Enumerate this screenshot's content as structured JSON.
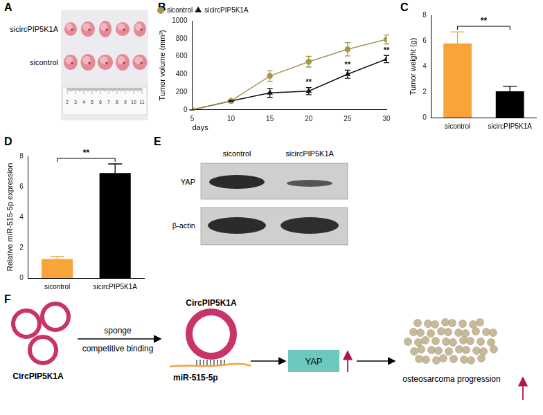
{
  "panel_labels": [
    "A",
    "B",
    "C",
    "D",
    "E",
    "F"
  ],
  "panel_a": {
    "row_labels": [
      "sicircPIP5K1A",
      "sicontrol"
    ],
    "ruler_labels": [
      2,
      3,
      4,
      5,
      6,
      7,
      8,
      9,
      10,
      11
    ]
  },
  "chart_data": [
    {
      "type": "line",
      "x_label": "days",
      "y_label": "Tumor volume (mm³)",
      "legend": "top-left",
      "grid": false,
      "x": [
        5,
        10,
        15,
        20,
        25,
        30
      ],
      "xlim": [
        5,
        30
      ],
      "xticks": [
        5,
        10,
        15,
        20,
        25,
        30
      ],
      "ylim": [
        0,
        1000
      ],
      "yticks": [
        0,
        200,
        400,
        600,
        800,
        1000
      ],
      "series": [
        {
          "name": "sicontrol",
          "color": "#a8964a",
          "marker": "circle",
          "values": [
            0,
            100,
            380,
            540,
            680,
            790
          ],
          "errors": [
            0,
            5,
            60,
            60,
            75,
            50
          ]
        },
        {
          "name": "sicircPIP5K1A",
          "color": "#111111",
          "marker": "triangle",
          "values": [
            0,
            100,
            190,
            210,
            400,
            570
          ],
          "errors": [
            0,
            5,
            50,
            40,
            45,
            40
          ]
        }
      ],
      "significance_series": "sicircPIP5K1A",
      "significance_x": [
        20,
        25,
        30
      ],
      "significance_label": "**"
    },
    {
      "type": "bar",
      "y_label": "Tumor weight (g)",
      "grid": false,
      "categories": [
        "sicontrol",
        "sicircPIP5K1A"
      ],
      "values": [
        5.8,
        2.05
      ],
      "errors": [
        0.9,
        0.4
      ],
      "colors": [
        "#f9a33b",
        "#000000"
      ],
      "ylim": [
        0,
        8
      ],
      "yticks": [
        0,
        2,
        4,
        6,
        8
      ],
      "significance_label": "**"
    },
    {
      "type": "bar",
      "y_label": "Relative miR-515-5p expression",
      "grid": false,
      "categories": [
        "sicontrol",
        "sicircPIP5K1A"
      ],
      "values": [
        1.25,
        6.9
      ],
      "errors": [
        0.18,
        0.6
      ],
      "colors": [
        "#f9a33b",
        "#000000"
      ],
      "ylim": [
        0,
        8
      ],
      "yticks": [
        0,
        2,
        4,
        6,
        8
      ],
      "significance_label": "**"
    }
  ],
  "panel_e": {
    "lanes": [
      "sicontrol",
      "sicircPIP5K1A"
    ],
    "rows": [
      "YAP",
      "β-actin"
    ]
  },
  "panel_f": {
    "source_label": "CircPIP5K1A",
    "arrow_top": "sponge",
    "arrow_bottom": "competitive binding",
    "complex_label": "CircPIP5K1A",
    "mirna": "miR-515-5p",
    "target": "YAP",
    "outcome": "osteosarcoma progression"
  }
}
